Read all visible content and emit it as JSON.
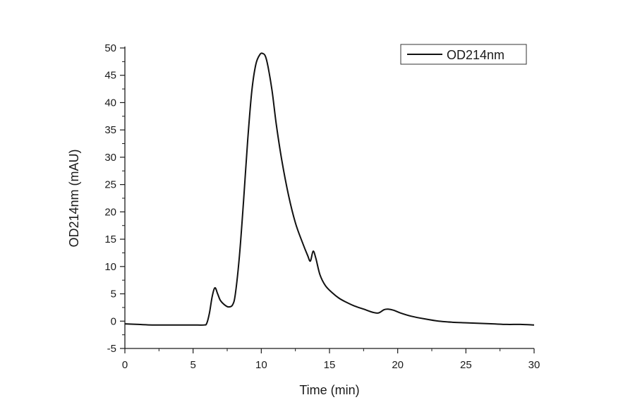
{
  "chart_data": {
    "type": "line",
    "title": "",
    "xlabel": "Time (min)",
    "ylabel": "OD214nm (mAU)",
    "xlim": [
      0,
      30
    ],
    "ylim": [
      -5,
      50
    ],
    "x_ticks": [
      0,
      5,
      10,
      15,
      20,
      25,
      30
    ],
    "y_ticks": [
      -5,
      0,
      5,
      10,
      15,
      20,
      25,
      30,
      35,
      40,
      45,
      50
    ],
    "x_tick_labels": [
      "0",
      "5",
      "10",
      "15",
      "20",
      "25",
      "30"
    ],
    "y_tick_labels": [
      "-5",
      "0",
      "5",
      "10",
      "15",
      "20",
      "25",
      "30",
      "35",
      "40",
      "45",
      "50"
    ],
    "grid": false,
    "legend_position": "top-right",
    "series": [
      {
        "name": "OD214nm",
        "color": "#111111",
        "x": [
          0,
          1,
          2,
          3,
          4,
          5,
          5.8,
          6.0,
          6.2,
          6.4,
          6.6,
          6.8,
          7.0,
          7.3,
          7.6,
          7.9,
          8.1,
          8.4,
          8.7,
          9.0,
          9.3,
          9.6,
          9.9,
          10.1,
          10.3,
          10.5,
          10.8,
          11.1,
          11.5,
          12.0,
          12.5,
          13.0,
          13.4,
          13.6,
          13.8,
          14.0,
          14.3,
          14.7,
          15.2,
          15.7,
          16.2,
          16.8,
          17.5,
          18.2,
          18.6,
          19.0,
          19.3,
          19.7,
          20.2,
          21.0,
          22.0,
          23.0,
          24.0,
          25.0,
          26.0,
          27.0,
          28.0,
          29.0,
          30.0
        ],
        "y": [
          -0.5,
          -0.6,
          -0.7,
          -0.7,
          -0.7,
          -0.7,
          -0.7,
          -0.4,
          1.5,
          4.5,
          6.1,
          5.0,
          3.8,
          3.0,
          2.6,
          3.0,
          5.0,
          12.0,
          22.0,
          33.0,
          42.0,
          47.0,
          48.8,
          49.0,
          48.5,
          46.5,
          42.0,
          36.0,
          29.5,
          23.0,
          18.0,
          14.5,
          12.0,
          11.0,
          12.8,
          11.5,
          8.5,
          6.5,
          5.2,
          4.2,
          3.5,
          2.8,
          2.2,
          1.6,
          1.5,
          2.1,
          2.2,
          2.0,
          1.5,
          0.9,
          0.4,
          0.0,
          -0.2,
          -0.3,
          -0.4,
          -0.5,
          -0.6,
          -0.6,
          -0.7
        ]
      }
    ]
  }
}
